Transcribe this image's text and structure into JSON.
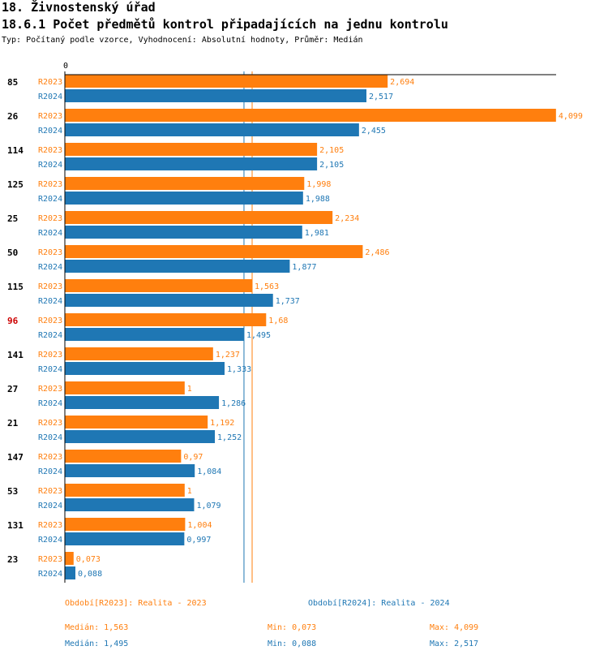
{
  "header": {
    "section": "18. Živnostenský úřad",
    "title": "18.6.1 Počet předmětů kontrol připadajících na jednu kontrolu",
    "subtitle": "Typ: Počítaný podle vzorce, Vyhodnocení: Absolutní hodnoty, Průměr: Medián"
  },
  "colors": {
    "R2023": "#ff7f0e",
    "R2024": "#1f77b4",
    "highlight": "#cc0000"
  },
  "chart_data": {
    "type": "bar",
    "orientation": "horizontal",
    "x_origin_label": "0",
    "xlim": [
      0,
      4.099
    ],
    "categories": [
      "85",
      "26",
      "114",
      "125",
      "25",
      "50",
      "115",
      "96",
      "141",
      "27",
      "21",
      "147",
      "53",
      "131",
      "23"
    ],
    "highlight_category": "96",
    "series": [
      {
        "name": "R2023",
        "values": [
          2.694,
          4.099,
          2.105,
          1.998,
          2.234,
          2.486,
          1.563,
          1.68,
          1.237,
          1,
          1.192,
          0.97,
          1,
          1.004,
          0.073
        ],
        "labels": [
          "2,694",
          "4,099",
          "2,105",
          "1,998",
          "2,234",
          "2,486",
          "1,563",
          "1,68",
          "1,237",
          "1",
          "1,192",
          "0,97",
          "1",
          "1,004",
          "0,073"
        ]
      },
      {
        "name": "R2024",
        "values": [
          2.517,
          2.455,
          2.105,
          1.988,
          1.981,
          1.877,
          1.737,
          1.495,
          1.333,
          1.286,
          1.252,
          1.084,
          1.079,
          0.997,
          0.088
        ],
        "labels": [
          "2,517",
          "2,455",
          "2,105",
          "1,988",
          "1,981",
          "1,877",
          "1,737",
          "1,495",
          "1,333",
          "1,286",
          "1,252",
          "1,084",
          "1,079",
          "0,997",
          "0,088"
        ]
      }
    ],
    "reference_lines": [
      {
        "series": "R2023",
        "value": 1.563
      },
      {
        "series": "R2024",
        "value": 1.495
      }
    ]
  },
  "footer": {
    "legend_2023": "Období[R2023]: Realita - 2023",
    "legend_2024": "Období[R2024]: Realita - 2024",
    "stats_2023": {
      "median": "Medián: 1,563",
      "min": "Min: 0,073",
      "max": "Max: 4,099"
    },
    "stats_2024": {
      "median": "Medián: 1,495",
      "min": "Min: 0,088",
      "max": "Max: 2,517"
    }
  }
}
